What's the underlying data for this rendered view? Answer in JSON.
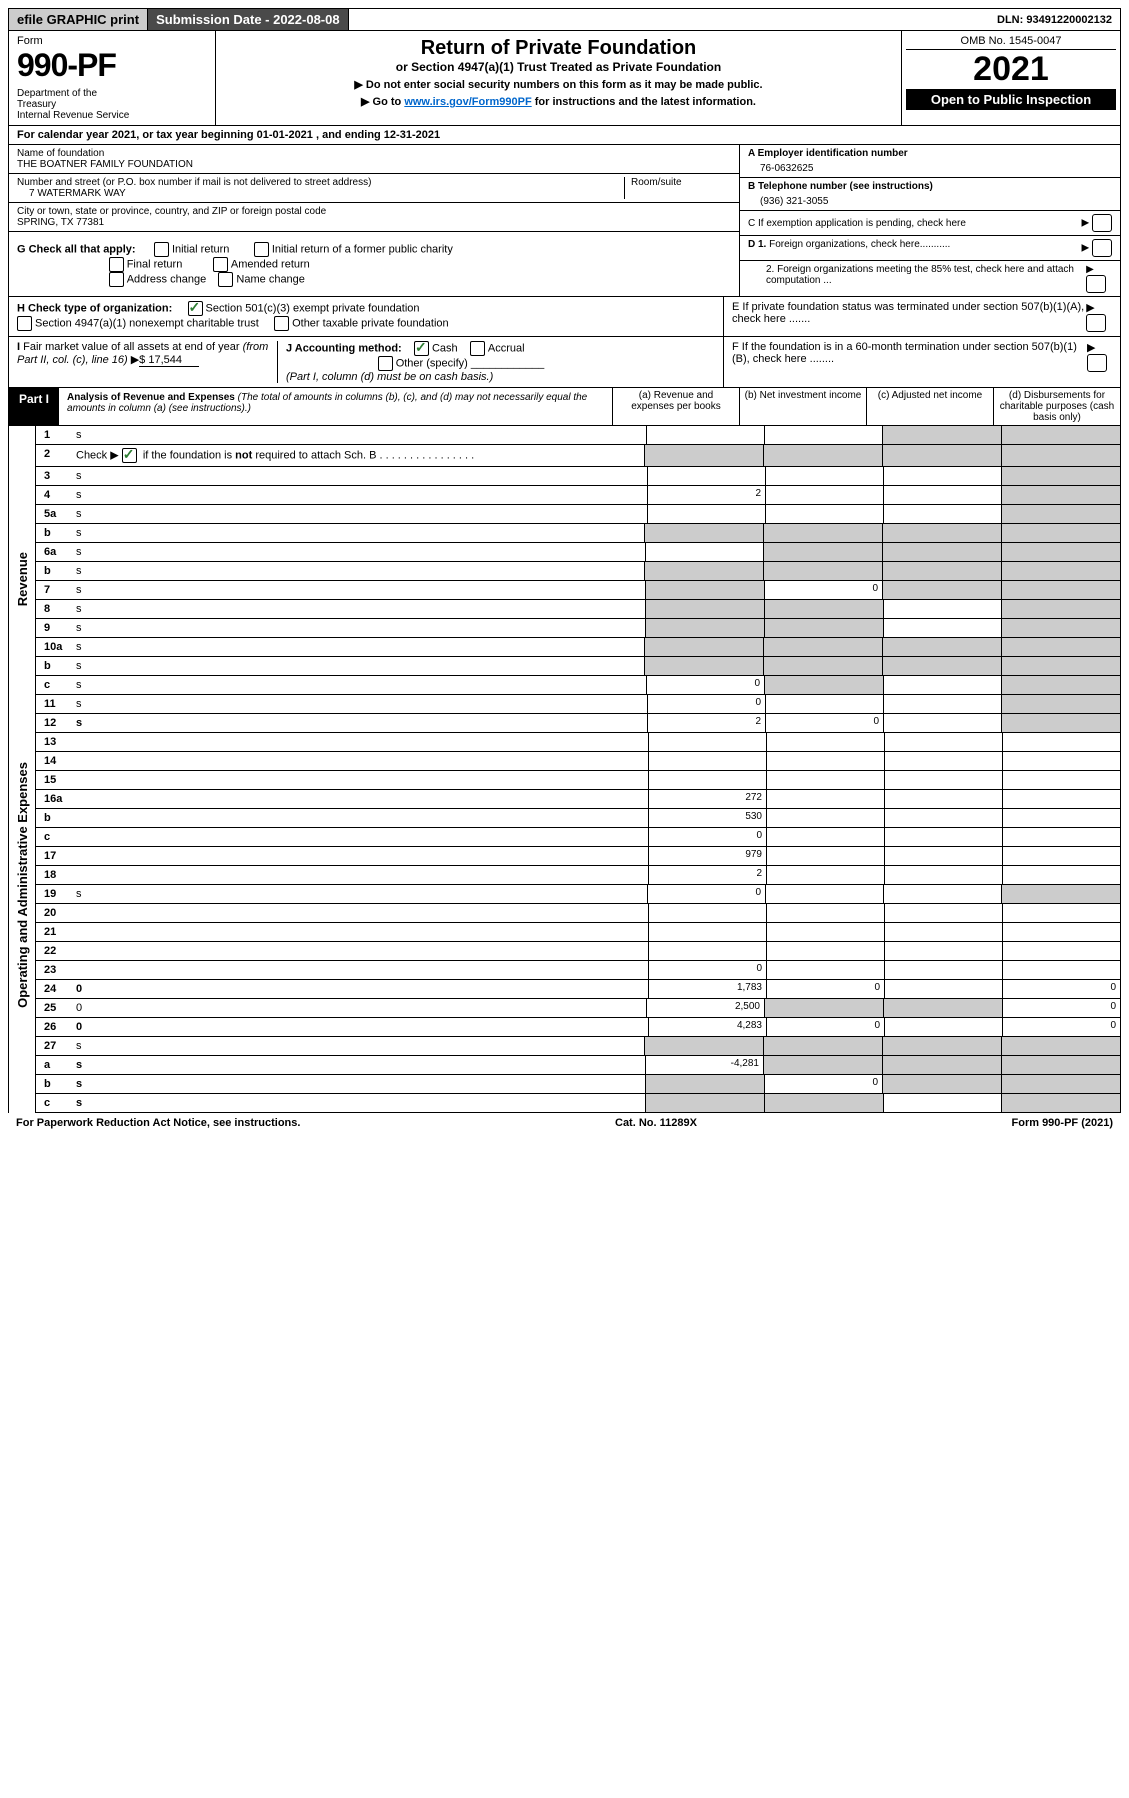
{
  "topbar": {
    "efile": "efile GRAPHIC print",
    "submission": "Submission Date - 2022-08-08",
    "dln": "DLN: 93491220002132"
  },
  "header": {
    "form_word": "Form",
    "form_number": "990-PF",
    "dept": "Department of the Treasury\nInternal Revenue Service",
    "title": "Return of Private Foundation",
    "subtitle": "or Section 4947(a)(1) Trust Treated as Private Foundation",
    "note1": "▶ Do not enter social security numbers on this form as it may be made public.",
    "note2_prefix": "▶ Go to ",
    "note2_link": "www.irs.gov/Form990PF",
    "note2_suffix": " for instructions and the latest information.",
    "omb": "OMB No. 1545-0047",
    "year": "2021",
    "open_pub": "Open to Public Inspection"
  },
  "calendar": "For calendar year 2021, or tax year beginning 01-01-2021                              , and ending 12-31-2021",
  "foundation": {
    "name_label": "Name of foundation",
    "name": "THE BOATNER FAMILY FOUNDATION",
    "addr_label": "Number and street (or P.O. box number if mail is not delivered to street address)",
    "addr": "7 WATERMARK WAY",
    "room_label": "Room/suite",
    "city_label": "City or town, state or province, country, and ZIP or foreign postal code",
    "city": "SPRING, TX  77381",
    "ein_label": "A Employer identification number",
    "ein": "76-0632625",
    "tel_label": "B Telephone number (see instructions)",
    "tel": "(936) 321-3055",
    "c_label": "C If exemption application is pending, check here",
    "d1": "D 1. Foreign organizations, check here...........",
    "d2": "2. Foreign organizations meeting the 85% test, check here and attach computation ...",
    "e": "E  If private foundation status was terminated under section 507(b)(1)(A), check here .......",
    "f": "F  If the foundation is in a 60-month termination under section 507(b)(1)(B), check here ........"
  },
  "g": {
    "label": "G Check all that apply:",
    "initial": "Initial return",
    "initial_former": "Initial return of a former public charity",
    "final": "Final return",
    "amended": "Amended return",
    "address": "Address change",
    "namechg": "Name change"
  },
  "h": {
    "label": "H Check type of organization:",
    "s501": "Section 501(c)(3) exempt private foundation",
    "s4947": "Section 4947(a)(1) nonexempt charitable trust",
    "other_tax": "Other taxable private foundation"
  },
  "i": {
    "label": "I Fair market value of all assets at end of year (from Part II, col. (c), line 16)",
    "value": "$  17,544"
  },
  "j": {
    "label": "J Accounting method:",
    "cash": "Cash",
    "accrual": "Accrual",
    "other": "Other (specify)",
    "note": "(Part I, column (d) must be on cash basis.)"
  },
  "part1": {
    "badge": "Part I",
    "title": "Analysis of Revenue and Expenses",
    "title_note": "(The total of amounts in columns (b), (c), and (d) may not necessarily equal the amounts in column (a) (see instructions).)",
    "col_a": "(a)   Revenue and expenses per books",
    "col_b": "(b)   Net investment income",
    "col_c": "(c)   Adjusted net income",
    "col_d": "(d)  Disbursements for charitable purposes (cash basis only)"
  },
  "vlabels": {
    "revenue": "Revenue",
    "expenses": "Operating and Administrative Expenses"
  },
  "lines": [
    {
      "n": "1",
      "d": "s",
      "a": "",
      "b": "",
      "c": "s"
    },
    {
      "n": "2",
      "d": "s",
      "a": "s",
      "b": "s",
      "c": "s",
      "checkmark": true
    },
    {
      "n": "3",
      "d": "s",
      "a": "",
      "b": "",
      "c": ""
    },
    {
      "n": "4",
      "d": "s",
      "a": "2",
      "b": "",
      "c": ""
    },
    {
      "n": "5a",
      "d": "s",
      "a": "",
      "b": "",
      "c": ""
    },
    {
      "n": "b",
      "d": "s",
      "a": "s",
      "b": "s",
      "c": "s"
    },
    {
      "n": "6a",
      "d": "s",
      "a": "",
      "b": "s",
      "c": "s"
    },
    {
      "n": "b",
      "d": "s",
      "a": "s",
      "b": "s",
      "c": "s"
    },
    {
      "n": "7",
      "d": "s",
      "a": "s",
      "b": "0",
      "c": "s"
    },
    {
      "n": "8",
      "d": "s",
      "a": "s",
      "b": "s",
      "c": ""
    },
    {
      "n": "9",
      "d": "s",
      "a": "s",
      "b": "s",
      "c": ""
    },
    {
      "n": "10a",
      "d": "s",
      "a": "s",
      "b": "s",
      "c": "s",
      "inset": true
    },
    {
      "n": "b",
      "d": "s",
      "a": "s",
      "b": "s",
      "c": "s",
      "inset": true
    },
    {
      "n": "c",
      "d": "s",
      "a": "0",
      "b": "s",
      "c": ""
    },
    {
      "n": "11",
      "d": "s",
      "a": "0",
      "b": "",
      "c": ""
    },
    {
      "n": "12",
      "d": "s",
      "a": "2",
      "b": "0",
      "c": "",
      "bold": true
    },
    {
      "n": "13",
      "d": "",
      "a": "",
      "b": "",
      "c": ""
    },
    {
      "n": "14",
      "d": "",
      "a": "",
      "b": "",
      "c": ""
    },
    {
      "n": "15",
      "d": "",
      "a": "",
      "b": "",
      "c": ""
    },
    {
      "n": "16a",
      "d": "",
      "a": "272",
      "b": "",
      "c": ""
    },
    {
      "n": "b",
      "d": "",
      "a": "530",
      "b": "",
      "c": ""
    },
    {
      "n": "c",
      "d": "",
      "a": "0",
      "b": "",
      "c": ""
    },
    {
      "n": "17",
      "d": "",
      "a": "979",
      "b": "",
      "c": ""
    },
    {
      "n": "18",
      "d": "",
      "a": "2",
      "b": "",
      "c": ""
    },
    {
      "n": "19",
      "d": "s",
      "a": "0",
      "b": "",
      "c": ""
    },
    {
      "n": "20",
      "d": "",
      "a": "",
      "b": "",
      "c": ""
    },
    {
      "n": "21",
      "d": "",
      "a": "",
      "b": "",
      "c": ""
    },
    {
      "n": "22",
      "d": "",
      "a": "",
      "b": "",
      "c": ""
    },
    {
      "n": "23",
      "d": "",
      "a": "0",
      "b": "",
      "c": ""
    },
    {
      "n": "24",
      "d": "0",
      "a": "1,783",
      "b": "0",
      "c": "",
      "bold": true
    },
    {
      "n": "25",
      "d": "0",
      "a": "2,500",
      "b": "s",
      "c": "s"
    },
    {
      "n": "26",
      "d": "0",
      "a": "4,283",
      "b": "0",
      "c": "",
      "bold": true
    },
    {
      "n": "27",
      "d": "s",
      "a": "s",
      "b": "s",
      "c": "s"
    },
    {
      "n": "a",
      "d": "s",
      "a": "-4,281",
      "b": "s",
      "c": "s",
      "bold": true
    },
    {
      "n": "b",
      "d": "s",
      "a": "s",
      "b": "0",
      "c": "s",
      "bold": true
    },
    {
      "n": "c",
      "d": "s",
      "a": "s",
      "b": "s",
      "c": "",
      "bold": true
    }
  ],
  "footer": {
    "left": "For Paperwork Reduction Act Notice, see instructions.",
    "mid": "Cat. No. 11289X",
    "right": "Form 990-PF (2021)"
  }
}
